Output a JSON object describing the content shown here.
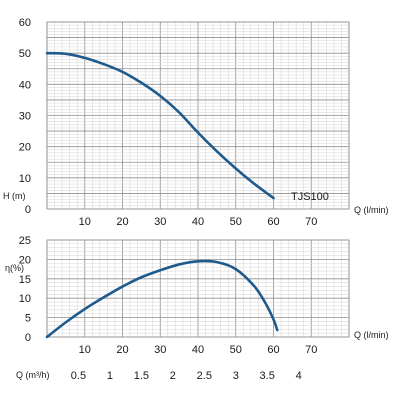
{
  "chart_data": [
    {
      "type": "line",
      "ylabel": "H (m)",
      "xlabel": "Q (l/min)",
      "model_label": "TJS100",
      "xlim": [
        0,
        80
      ],
      "ylim": [
        0,
        60
      ],
      "grid": true,
      "x_ticks": [
        "10",
        "20",
        "30",
        "40",
        "50",
        "60",
        "70"
      ],
      "y_ticks": [
        "0",
        "10",
        "20",
        "30",
        "40",
        "50",
        "60"
      ],
      "series": [
        {
          "x": [
            0,
            5,
            10,
            15,
            20,
            25,
            30,
            35,
            40,
            45,
            50,
            55,
            60
          ],
          "y": [
            50,
            49.8,
            48.5,
            46.5,
            44,
            40.5,
            36.3,
            31,
            24.5,
            18.5,
            13,
            8,
            3.5
          ]
        }
      ]
    },
    {
      "type": "line",
      "ylabel": "η(%)",
      "xlabel": "Q (l/min)",
      "xlim": [
        0,
        80
      ],
      "ylim": [
        0,
        25
      ],
      "grid": true,
      "x_ticks": [
        "10",
        "20",
        "30",
        "40",
        "50",
        "60",
        "70"
      ],
      "y_ticks": [
        "0",
        "5",
        "10",
        "15",
        "20",
        "25"
      ],
      "series": [
        {
          "x": [
            0,
            5,
            10,
            15,
            20,
            25,
            30,
            35,
            40,
            45,
            50,
            55,
            58,
            60,
            61
          ],
          "y": [
            0,
            3.8,
            7.2,
            10.2,
            13,
            15.4,
            17.2,
            18.7,
            19.5,
            19.3,
            17.5,
            13,
            8.5,
            4.5,
            1.8
          ]
        }
      ]
    }
  ],
  "secondary_axis": {
    "label": "Q (m³/h)",
    "ticks": [
      "0.5",
      "1",
      "1.5",
      "2",
      "2.5",
      "3",
      "3.5",
      "4"
    ]
  },
  "colors": {
    "curve": "#1f5a8c",
    "text": "#1a1a1a"
  }
}
